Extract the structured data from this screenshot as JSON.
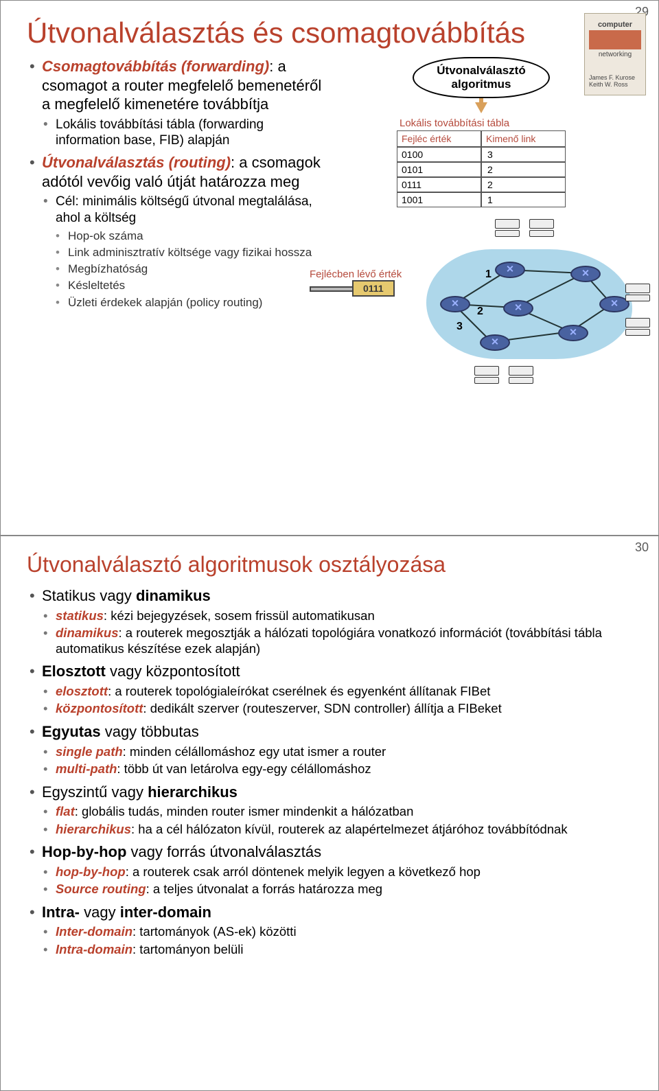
{
  "slide1": {
    "pagenum": "29",
    "title": "Útvonalválasztás és csomagtovábbítás",
    "book": {
      "t1": "computer",
      "t2": "networking",
      "t3": "James F. Kurose\nKeith W. Ross"
    },
    "b1": {
      "lead": "Csomagtovábbítás (forwarding)",
      "rest": ": a csomagot a router megfelelő bemenetéről a megfelelő kimenetére továbbítja",
      "sub1": "Lokális továbbítási tábla (forwarding information base, FIB) alapján"
    },
    "b2": {
      "lead": "Útvonalválasztás (routing)",
      "rest": ": a csomagok adótól vevőig való útját határozza meg",
      "sub1": "Cél: minimális költségű útvonal megtalálása, ahol a költség",
      "ssub": [
        "Hop-ok száma",
        "Link adminisztratív költsége vagy fizikai hossza",
        "Megbízhatóság",
        "Késleltetés",
        "Üzleti érdekek alapján (policy routing)"
      ]
    },
    "diagram": {
      "algo_label": "Útvonalválasztó algoritmus",
      "fib_caption": "Lokális továbbítási tábla",
      "fib_hdr1": "Fejléc érték",
      "fib_hdr2": "Kimenő link",
      "rows": [
        {
          "h": "0100",
          "l": "3"
        },
        {
          "h": "0101",
          "l": "2"
        },
        {
          "h": "0111",
          "l": "2"
        },
        {
          "h": "1001",
          "l": "1"
        }
      ],
      "hdrval_label": "Fejlécben lévő érték",
      "hdrval_value": "0111",
      "linknums": {
        "n1": "1",
        "n2": "2",
        "n3": "3"
      }
    }
  },
  "slide2": {
    "pagenum": "30",
    "title": "Útvonalválasztó algoritmusok osztályozása",
    "items": [
      {
        "head_plain": "Statikus vagy ",
        "head_bold": "dinamikus",
        "subs": [
          {
            "em": "statikus",
            "rest": ": kézi bejegyzések, sosem frissül automatikusan"
          },
          {
            "em": "dinamikus",
            "rest": ": a routerek megosztják a hálózati topológiára vonatkozó információt (továbbítási tábla automatikus készítése ezek alapján)"
          }
        ]
      },
      {
        "head_bold": "Elosztott",
        "head_plain2": " vagy központosított",
        "subs": [
          {
            "em": "elosztott",
            "rest": ": a routerek topológialeírókat cserélnek és egyenként állítanak FIBet"
          },
          {
            "em": "központosított",
            "rest": ": dedikált szerver (routeszerver, SDN controller) állítja a FIBeket"
          }
        ]
      },
      {
        "head_bold": "Egyutas",
        "head_plain2": " vagy többutas",
        "subs": [
          {
            "em": "single path",
            "rest": ": minden célállomáshoz egy utat ismer a router"
          },
          {
            "em": "multi-path",
            "rest": ": több út van letárolva egy-egy célállomáshoz"
          }
        ]
      },
      {
        "head_plain": "Egyszintű vagy ",
        "head_bold": "hierarchikus",
        "subs": [
          {
            "em": "flat",
            "rest": ": globális tudás, minden router ismer mindenkit a hálózatban"
          },
          {
            "em": "hierarchikus",
            "rest": ": ha a cél hálózaton kívül, routerek az alapértelmezet átjáróhoz továbbítódnak"
          }
        ]
      },
      {
        "head_bold": "Hop-by-hop",
        "head_plain2": " vagy forrás útvonalválasztás",
        "subs": [
          {
            "em": "hop-by-hop",
            "rest": ": a routerek csak arról döntenek melyik legyen a következő hop"
          },
          {
            "em": "Source routing",
            "rest": ": a teljes útvonalat a forrás határozza meg"
          }
        ]
      },
      {
        "head_bold": "Intra-",
        "head_plain2": " vagy ",
        "head_bold2": "inter-domain",
        "subs": [
          {
            "em": "Inter-domain",
            "rest": ": tartományok (AS-ek) közötti"
          },
          {
            "em": "Intra-domain",
            "rest": ": tartományon belüli"
          }
        ]
      }
    ]
  }
}
